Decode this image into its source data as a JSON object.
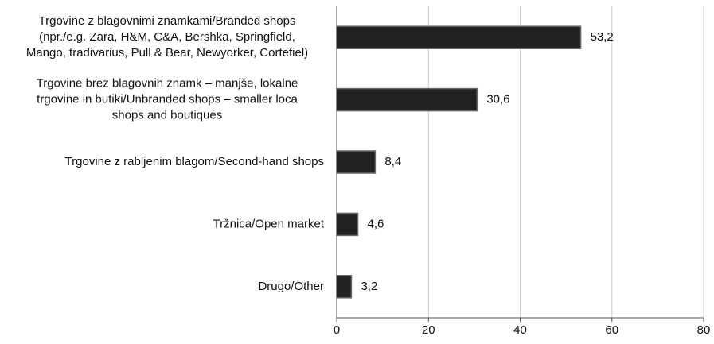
{
  "chart_data": {
    "type": "barh",
    "categories": [
      [
        "Trgovine z blagovnimi znamkami/Branded shops",
        "(npr./e.g. Zara, H&M, C&A, Bershka, Springfield,",
        "Mango, tradivarius, Pull & Bear, Newyorker, Cortefiel)"
      ],
      [
        "Trgovine brez blagovnih znamk – manjše, lokalne",
        "trgovine in butiki/Unbranded shops – smaller loca",
        "shops and boutiques"
      ],
      [
        "Trgovine z rabljenim blagom/Second-hand shops"
      ],
      [
        "Tržnica/Open market"
      ],
      [
        "Drugo/Other"
      ]
    ],
    "values": [
      53.2,
      30.6,
      8.4,
      4.6,
      3.2
    ],
    "value_labels": [
      "53,2",
      "30,6",
      "8,4",
      "4,6",
      "3,2"
    ],
    "color": "#222222",
    "xlim": [
      0,
      80
    ],
    "xticks": [
      0,
      20,
      40,
      60,
      80
    ],
    "grid": true
  }
}
